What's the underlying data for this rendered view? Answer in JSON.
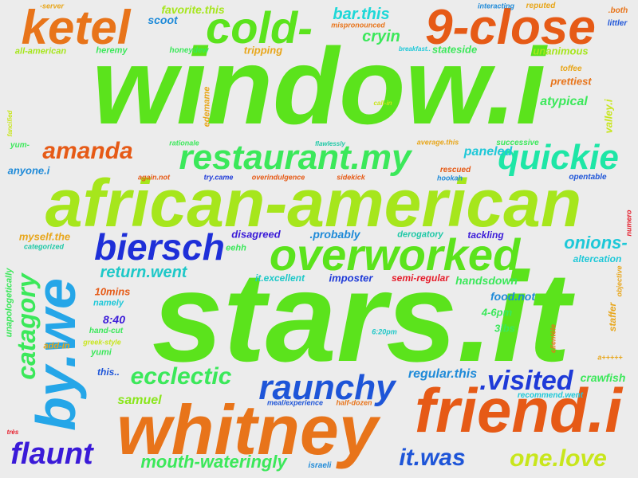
{
  "cloud": {
    "words": [
      {
        "text": "window.i",
        "color": "#5be31c"
      },
      {
        "text": "stars.it",
        "color": "#5be31c"
      },
      {
        "text": "african-american",
        "color": "#a6e61c"
      },
      {
        "text": "whitney",
        "color": "#e8741a"
      },
      {
        "text": "friend.i",
        "color": "#e65a16"
      },
      {
        "text": "ketel",
        "color": "#e8741a"
      },
      {
        "text": "cold-",
        "color": "#5be31c"
      },
      {
        "text": "9-close",
        "color": "#e65a16"
      },
      {
        "text": "by.we",
        "color": "#25a6e8"
      },
      {
        "text": "overworked",
        "color": "#5be31c"
      },
      {
        "text": "restaurant.my",
        "color": "#3be85a"
      },
      {
        "text": "quickie",
        "color": "#1ee6a6"
      },
      {
        "text": "biersch",
        "color": "#1e2fd8"
      },
      {
        "text": "catagory",
        "color": "#3be85a"
      },
      {
        "text": "raunchy",
        "color": "#1e55d8"
      },
      {
        "text": "amanda",
        "color": "#e65a16"
      },
      {
        "text": "ecclectic",
        "color": "#3be85a"
      },
      {
        "text": "flaunt",
        "color": "#3a1ad8"
      },
      {
        "text": ".visited",
        "color": "#1e3ad8"
      },
      {
        "text": "it.was",
        "color": "#1e55d8"
      },
      {
        "text": "one.love",
        "color": "#c8e61c"
      },
      {
        "text": "mouth-wateringly",
        "color": "#3be85a"
      },
      {
        "text": "return.went",
        "color": "#1ec8c8"
      },
      {
        "text": "onions-",
        "color": "#1ec8d8"
      },
      {
        "text": "cryin",
        "color": "#3be85a"
      },
      {
        "text": "bar.this",
        "color": "#1ed8d8"
      },
      {
        "text": "paneled",
        "color": "#1ec8d8"
      },
      {
        "text": "atypical",
        "color": "#3be85a"
      },
      {
        "text": "regular.this",
        "color": "#1e8ad8"
      },
      {
        "text": "handsdown",
        "color": "#3be85a"
      },
      {
        "text": "samuel",
        "color": "#8ae61c"
      },
      {
        "text": "crawfish",
        "color": "#3be85a"
      },
      {
        "text": "favorite.this",
        "color": "#a6e61c"
      },
      {
        "text": "scoot",
        "color": "#1e8ad8"
      },
      {
        "text": "disagreed",
        "color": "#3a1ad8"
      },
      {
        "text": ".probably",
        "color": "#1e8ad8"
      },
      {
        "text": "imposter",
        "color": "#1e3ad8"
      },
      {
        "text": "semi-regular",
        "color": "#e61c2a"
      },
      {
        "text": "food.not",
        "color": "#1e8ad8"
      },
      {
        "text": "myself.the",
        "color": "#e8a61a"
      },
      {
        "text": "8:40",
        "color": "#3a1ad8"
      },
      {
        "text": "prettiest",
        "color": "#e8741a"
      },
      {
        "text": "it.excellent",
        "color": "#1ec8c8"
      },
      {
        "text": "tackling",
        "color": "#3a1ad8"
      },
      {
        "text": "derogatory",
        "color": "#1ec8a6"
      },
      {
        "text": "altercation",
        "color": "#1ec8d8"
      },
      {
        "text": "4-6pm",
        "color": "#3be85a"
      },
      {
        "text": "3lbs",
        "color": "#3be85a"
      },
      {
        "text": "10mins",
        "color": "#e65a16"
      },
      {
        "text": "namely",
        "color": "#1ec8d8"
      },
      {
        "text": "this..",
        "color": "#1e55d8"
      },
      {
        "text": "anyone.i",
        "color": "#1e8ad8"
      },
      {
        "text": "heremy",
        "color": "#3be85a"
      },
      {
        "text": "stateside",
        "color": "#3be85a"
      },
      {
        "text": "unanimous",
        "color": "#a6e61c"
      },
      {
        "text": "tripping",
        "color": "#e8a61a"
      },
      {
        "text": "honeydew",
        "color": "#3be85a"
      },
      {
        "text": "all-american",
        "color": "#a6e61c"
      },
      {
        "text": "eehh",
        "color": "#3be85a"
      },
      {
        "text": "yumi",
        "color": "#3be85a"
      },
      {
        "text": "add-in",
        "color": "#e8a61a"
      },
      {
        "text": "hand-cut",
        "color": "#3be85a"
      },
      {
        "text": "greek-style",
        "color": "#c8e61c"
      },
      {
        "text": "successive",
        "color": "#3be85a"
      },
      {
        "text": "rescued",
        "color": "#e65a16"
      },
      {
        "text": "hookah",
        "color": "#1e8ad8"
      },
      {
        "text": "opentable",
        "color": "#1e55d8"
      },
      {
        "text": "toffee",
        "color": "#e8a61a"
      },
      {
        "text": "reputed",
        "color": "#e8a61a"
      },
      {
        "text": "interacting",
        "color": "#1e8ad8"
      },
      {
        "text": ".both",
        "color": "#e8741a"
      },
      {
        "text": "littler",
        "color": "#1e55d8"
      },
      {
        "text": "-server",
        "color": "#e8a61a"
      },
      {
        "text": "mispronounced",
        "color": "#e8741a"
      },
      {
        "text": "breakfast..",
        "color": "#1ec8d8"
      },
      {
        "text": "rationale",
        "color": "#3be85a"
      },
      {
        "text": "flawlessly",
        "color": "#1ec8a6"
      },
      {
        "text": "average.this",
        "color": "#e8a61a"
      },
      {
        "text": "call-in",
        "color": "#c8e61c"
      },
      {
        "text": "again.not",
        "color": "#e65a16"
      },
      {
        "text": "try.came",
        "color": "#1e3ad8"
      },
      {
        "text": "overindulgence",
        "color": "#e65a16"
      },
      {
        "text": "sidekick",
        "color": "#e65a16"
      },
      {
        "text": "categorized",
        "color": "#1ec8a6"
      },
      {
        "text": "yum-",
        "color": "#3be85a"
      },
      {
        "text": "6:20pm",
        "color": "#1ec8c8"
      },
      {
        "text": "meal/experience",
        "color": "#1e55d8"
      },
      {
        "text": "half-dozen",
        "color": "#e8741a"
      },
      {
        "text": "recommend.went",
        "color": "#1ec8d8"
      },
      {
        "text": "israeli",
        "color": "#1e8ad8"
      },
      {
        "text": "très",
        "color": "#e61c2a"
      },
      {
        "text": "a+++++",
        "color": "#e8a61a"
      },
      {
        "text": "fancified",
        "color": "#c8e61c"
      },
      {
        "text": "edemame",
        "color": "#e8a61a"
      },
      {
        "text": "valley.i",
        "color": "#c8e61c"
      },
      {
        "text": "numero",
        "color": "#e61c2a"
      },
      {
        "text": "unapologetically",
        "color": "#3be85a"
      },
      {
        "text": "clientèle",
        "color": "#e8741a"
      },
      {
        "text": "objective",
        "color": "#e8a61a"
      },
      {
        "text": "staffer",
        "color": "#e8a61a"
      }
    ]
  }
}
